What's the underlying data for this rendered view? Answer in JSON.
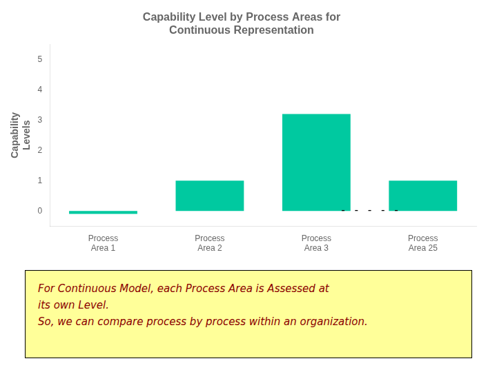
{
  "chart_data": {
    "type": "bar",
    "title": "Capability Level by Process Areas for\nContinuous Representation",
    "y_label": "Capability\nLevels",
    "categories": [
      "Process\nArea 1",
      "Process\nArea 2",
      "Process\nArea 3",
      "Process\nArea 25"
    ],
    "values": [
      -0.1,
      1.0,
      3.2,
      1.0
    ],
    "color": "#00C9A0",
    "ylim": [
      -0.5,
      5.5
    ],
    "yticks": [
      0,
      1,
      2,
      3,
      4,
      5
    ],
    "grid": false,
    "annotations": [
      "- - - - -",
      "For Continuous Model, each Process Area is Assessed at",
      "its own Level.",
      "So, we can compare process by process within an organization."
    ]
  }
}
